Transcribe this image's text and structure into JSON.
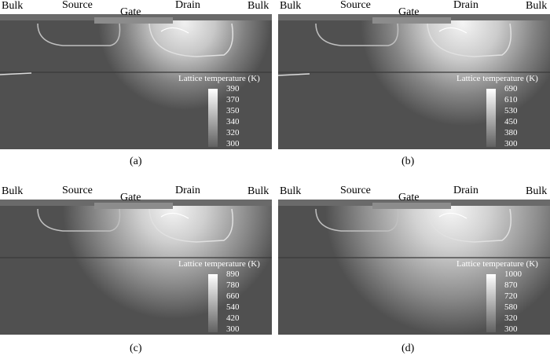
{
  "panels": [
    {
      "id": "a",
      "caption": "(a)",
      "labels": {
        "bulk_left": "Bulk",
        "source": "Source",
        "gate": "Gate",
        "drain": "Drain",
        "bulk_right": "Bulk"
      },
      "legend_title": "Lattice temperature (K)",
      "ticks": [
        "390",
        "370",
        "350",
        "340",
        "320",
        "300"
      ]
    },
    {
      "id": "b",
      "caption": "(b)",
      "labels": {
        "bulk_left": "Bulk",
        "source": "Source",
        "gate": "Gate",
        "drain": "Drain",
        "bulk_right": "Bulk"
      },
      "legend_title": "Lattice temperature (K)",
      "ticks": [
        "690",
        "610",
        "530",
        "450",
        "380",
        "300"
      ]
    },
    {
      "id": "c",
      "caption": "(c)",
      "labels": {
        "bulk_left": "Bulk",
        "source": "Source",
        "gate": "Gate",
        "drain": "Drain",
        "bulk_right": "Bulk"
      },
      "legend_title": "Lattice temperature (K)",
      "ticks": [
        "890",
        "780",
        "660",
        "540",
        "420",
        "300"
      ]
    },
    {
      "id": "d",
      "caption": "(d)",
      "labels": {
        "bulk_left": "Bulk",
        "source": "Source",
        "gate": "Gate",
        "drain": "Drain",
        "bulk_right": "Bulk"
      },
      "legend_title": "Lattice temperature (K)",
      "ticks": [
        "1000",
        "870",
        "720",
        "580",
        "320",
        "300"
      ]
    }
  ],
  "colors": {
    "background_gray": "#505050",
    "hot_spot": "#e8e8e8",
    "outline": "#d0d0d0"
  }
}
